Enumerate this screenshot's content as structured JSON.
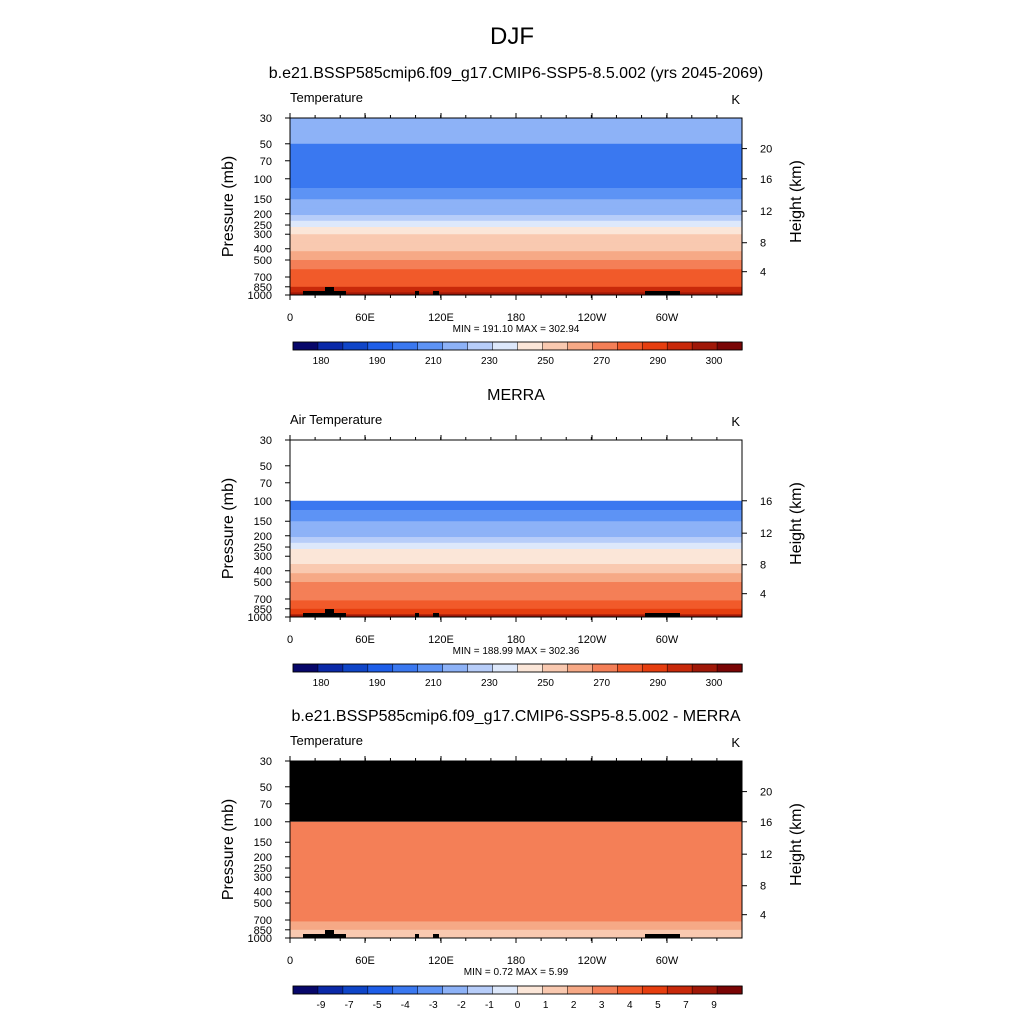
{
  "page_title": "DJF",
  "colormaps": {
    "abs": [
      "#07076a",
      "#0a29a8",
      "#0f45c8",
      "#1e5ee8",
      "#3a78f0",
      "#5d93f5",
      "#8db2f7",
      "#b7cdf9",
      "#dde8fb",
      "#fbe6d8",
      "#f9c9b0",
      "#f6a986",
      "#f47f57",
      "#f15a2a",
      "#e63e0f",
      "#c8290a",
      "#a01808",
      "#7a0505"
    ],
    "diff": [
      "#07076a",
      "#0a29a8",
      "#0f45c8",
      "#1e5ee8",
      "#3a78f0",
      "#5d93f5",
      "#8db2f7",
      "#b7cdf9",
      "#dde8fb",
      "#fbe6d8",
      "#f9c9b0",
      "#f6a986",
      "#f47f57",
      "#f15a2a",
      "#e63e0f",
      "#c8290a",
      "#a01808",
      "#7a0505"
    ],
    "missing": "#000000"
  },
  "chart_data": [
    {
      "type": "heatmap",
      "title": "b.e21.BSSP585cmip6.f09_g17.CMIP6-SSP5-8.5.002 (yrs 2045-2069)",
      "left_label": "Temperature",
      "units_label": "K",
      "ylabel": "Pressure (mb)",
      "ylabel_right": "Height (km)",
      "x_ticks": [
        "0",
        "60E",
        "120E",
        "180",
        "120W",
        "60W"
      ],
      "y_ticks": [
        "30",
        "50",
        "70",
        "100",
        "150",
        "200",
        "250",
        "300",
        "400",
        "500",
        "700",
        "850",
        "1000"
      ],
      "y_right_ticks": [
        "20",
        "16",
        "12",
        "8",
        "4"
      ],
      "stats": "MIN = 191.10  MAX = 302.94",
      "colorbar_labels": [
        "180",
        "190",
        "210",
        "230",
        "250",
        "270",
        "290",
        "300"
      ],
      "levels": [
        {
          "p_top": 30,
          "p_bottom": 50,
          "value": 211
        },
        {
          "p_top": 50,
          "p_bottom": 120,
          "value": 196
        },
        {
          "p_top": 120,
          "p_bottom": 150,
          "value": 205
        },
        {
          "p_top": 150,
          "p_bottom": 180,
          "value": 212
        },
        {
          "p_top": 180,
          "p_bottom": 205,
          "value": 218
        },
        {
          "p_top": 205,
          "p_bottom": 230,
          "value": 224
        },
        {
          "p_top": 230,
          "p_bottom": 260,
          "value": 232
        },
        {
          "p_top": 260,
          "p_bottom": 300,
          "value": 240
        },
        {
          "p_top": 300,
          "p_bottom": 350,
          "value": 250
        },
        {
          "p_top": 350,
          "p_bottom": 420,
          "value": 258
        },
        {
          "p_top": 420,
          "p_bottom": 500,
          "value": 265
        },
        {
          "p_top": 500,
          "p_bottom": 600,
          "value": 272
        },
        {
          "p_top": 600,
          "p_bottom": 720,
          "value": 280
        },
        {
          "p_top": 720,
          "p_bottom": 850,
          "value": 288
        },
        {
          "p_top": 850,
          "p_bottom": 950,
          "value": 295
        },
        {
          "p_top": 950,
          "p_bottom": 1000,
          "value": 300
        }
      ],
      "masked_top": false
    },
    {
      "type": "heatmap",
      "title": "MERRA",
      "left_label": "Air Temperature",
      "units_label": "K",
      "ylabel": "Pressure (mb)",
      "ylabel_right": "Height (km)",
      "x_ticks": [
        "0",
        "60E",
        "120E",
        "180",
        "120W",
        "60W"
      ],
      "y_ticks": [
        "30",
        "50",
        "70",
        "100",
        "150",
        "200",
        "250",
        "300",
        "400",
        "500",
        "700",
        "850",
        "1000"
      ],
      "y_right_ticks": [
        "16",
        "12",
        "8",
        "4"
      ],
      "stats": "MIN = 188.99  MAX = 302.36",
      "colorbar_labels": [
        "180",
        "190",
        "210",
        "230",
        "250",
        "270",
        "290",
        "300"
      ],
      "levels": [
        {
          "p_top": 100,
          "p_bottom": 120,
          "value": 195
        },
        {
          "p_top": 120,
          "p_bottom": 150,
          "value": 204
        },
        {
          "p_top": 150,
          "p_bottom": 180,
          "value": 212
        },
        {
          "p_top": 180,
          "p_bottom": 205,
          "value": 218
        },
        {
          "p_top": 205,
          "p_bottom": 230,
          "value": 224
        },
        {
          "p_top": 230,
          "p_bottom": 260,
          "value": 232
        },
        {
          "p_top": 260,
          "p_bottom": 300,
          "value": 240
        },
        {
          "p_top": 300,
          "p_bottom": 350,
          "value": 248
        },
        {
          "p_top": 350,
          "p_bottom": 420,
          "value": 255
        },
        {
          "p_top": 420,
          "p_bottom": 500,
          "value": 262
        },
        {
          "p_top": 500,
          "p_bottom": 600,
          "value": 270
        },
        {
          "p_top": 600,
          "p_bottom": 720,
          "value": 278
        },
        {
          "p_top": 720,
          "p_bottom": 850,
          "value": 286
        },
        {
          "p_top": 850,
          "p_bottom": 950,
          "value": 294
        },
        {
          "p_top": 950,
          "p_bottom": 1000,
          "value": 300
        }
      ],
      "masked_top": false
    },
    {
      "type": "heatmap",
      "title": "b.e21.BSSP585cmip6.f09_g17.CMIP6-SSP5-8.5.002 - MERRA",
      "left_label": "Temperature",
      "units_label": "K",
      "ylabel": "Pressure (mb)",
      "ylabel_right": "Height (km)",
      "x_ticks": [
        "0",
        "60E",
        "120E",
        "180",
        "120W",
        "60W"
      ],
      "y_ticks": [
        "30",
        "50",
        "70",
        "100",
        "150",
        "200",
        "250",
        "300",
        "400",
        "500",
        "700",
        "850",
        "1000"
      ],
      "y_right_ticks": [
        "20",
        "16",
        "12",
        "8",
        "4"
      ],
      "stats": "MIN =   0.72  MAX =   5.99",
      "colorbar_labels": [
        "-9",
        "-7",
        "-5",
        "-4",
        "-3",
        "-2",
        "-1",
        "0",
        "1",
        "2",
        "3",
        "4",
        "5",
        "7",
        "9"
      ],
      "levels": [
        {
          "p_top": 100,
          "p_bottom": 160,
          "value": 4.2
        },
        {
          "p_top": 160,
          "p_bottom": 230,
          "value": 4.6
        },
        {
          "p_top": 230,
          "p_bottom": 350,
          "value": 4.3
        },
        {
          "p_top": 350,
          "p_bottom": 500,
          "value": 4.5
        },
        {
          "p_top": 500,
          "p_bottom": 720,
          "value": 4.2
        },
        {
          "p_top": 720,
          "p_bottom": 850,
          "value": 3.6
        },
        {
          "p_top": 850,
          "p_bottom": 1000,
          "value": 2.5
        }
      ],
      "masked_top": true
    }
  ]
}
